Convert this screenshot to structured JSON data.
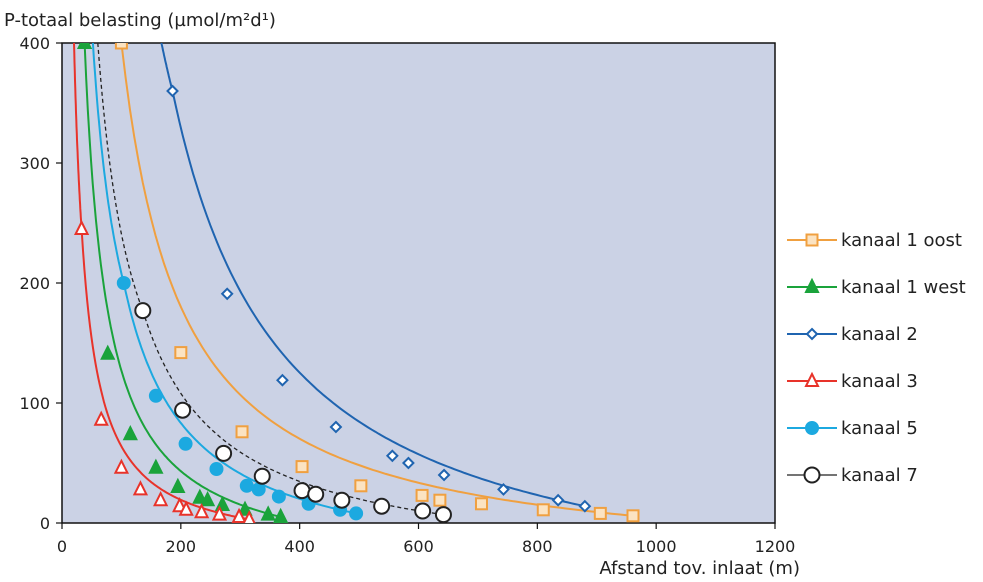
{
  "chart_data": {
    "type": "line",
    "ylabel": "P-totaal belasting (µmol/m²d¹)",
    "xlabel": "Afstand tov. inlaat (m)",
    "xlim": [
      0,
      1200
    ],
    "ylim": [
      0,
      400
    ],
    "x_ticks": [
      "0",
      "200",
      "400",
      "600",
      "800",
      "1000",
      "1200"
    ],
    "y_ticks": [
      "0",
      "100",
      "200",
      "300",
      "400"
    ],
    "grid": false,
    "background": "#cbd2e5",
    "legend_position": "right",
    "series": [
      {
        "name": "kanaal 1 oost",
        "color": "#f0a040",
        "marker": "square-open",
        "line": "solid",
        "points": [
          [
            100,
            400
          ],
          [
            200,
            142
          ],
          [
            303,
            76
          ],
          [
            404,
            47
          ],
          [
            503,
            31
          ],
          [
            606,
            23
          ],
          [
            636,
            19
          ],
          [
            706,
            16
          ],
          [
            810,
            11
          ],
          [
            906,
            8
          ],
          [
            961,
            6
          ]
        ]
      },
      {
        "name": "kanaal 1 west",
        "color": "#1aa33b",
        "marker": "triangle-filled",
        "line": "solid",
        "points": [
          [
            38,
            400
          ],
          [
            77,
            141
          ],
          [
            115,
            74
          ],
          [
            158,
            46
          ],
          [
            195,
            30
          ],
          [
            232,
            21
          ],
          [
            245,
            19
          ],
          [
            270,
            15
          ],
          [
            308,
            11
          ],
          [
            347,
            7
          ],
          [
            368,
            5
          ]
        ]
      },
      {
        "name": "kanaal 2",
        "color": "#1f64b0",
        "marker": "diamond-open",
        "line": "solid",
        "points": [
          [
            186,
            360
          ],
          [
            278,
            191
          ],
          [
            371,
            119
          ],
          [
            461,
            80
          ],
          [
            556,
            56
          ],
          [
            583,
            50
          ],
          [
            643,
            40
          ],
          [
            743,
            28
          ],
          [
            835,
            19
          ],
          [
            880,
            14
          ]
        ]
      },
      {
        "name": "kanaal 3",
        "color": "#e8332a",
        "marker": "triangle-open",
        "line": "solid",
        "points": [
          [
            33,
            245
          ],
          [
            66,
            86
          ],
          [
            100,
            46
          ],
          [
            132,
            28
          ],
          [
            166,
            19
          ],
          [
            198,
            14
          ],
          [
            209,
            11
          ],
          [
            235,
            9
          ],
          [
            265,
            7
          ],
          [
            298,
            5
          ],
          [
            315,
            3
          ]
        ]
      },
      {
        "name": "kanaal 5",
        "color": "#1ca9e0",
        "marker": "circle-filled",
        "line": "solid",
        "points": [
          [
            104,
            200
          ],
          [
            158,
            106
          ],
          [
            208,
            66
          ],
          [
            260,
            45
          ],
          [
            311,
            31
          ],
          [
            331,
            28
          ],
          [
            365,
            22
          ],
          [
            415,
            16
          ],
          [
            468,
            11
          ],
          [
            495,
            8
          ]
        ]
      },
      {
        "name": "kanaal 7",
        "color": "#222222",
        "marker": "circle-open",
        "line": "dashed",
        "points": [
          [
            136,
            177
          ],
          [
            203,
            94
          ],
          [
            272,
            58
          ],
          [
            337,
            39
          ],
          [
            404,
            27
          ],
          [
            427,
            24
          ],
          [
            471,
            19
          ],
          [
            538,
            14
          ],
          [
            607,
            10
          ],
          [
            642,
            7
          ]
        ]
      }
    ]
  }
}
